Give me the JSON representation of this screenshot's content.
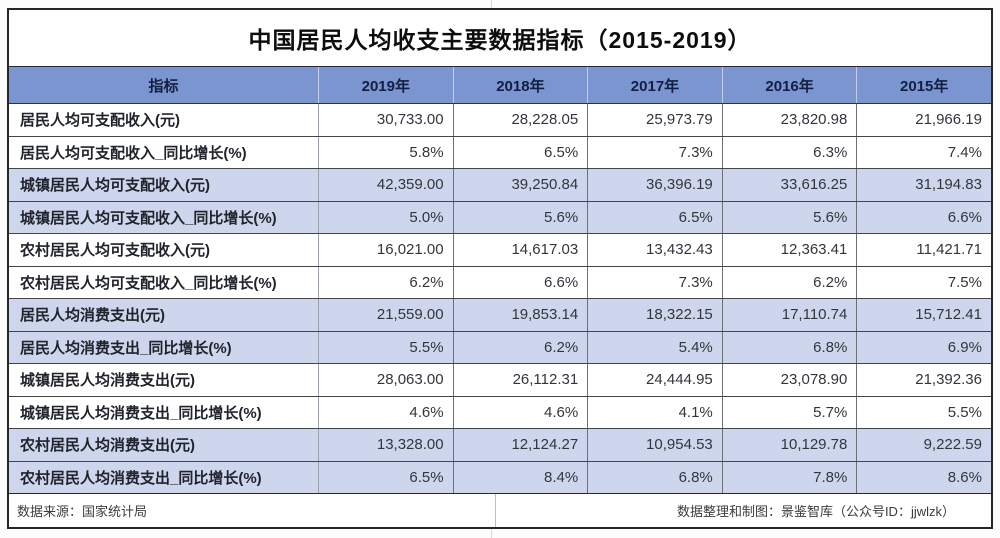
{
  "title": "中国居民人均收支主要数据指标（2015-2019）",
  "table": {
    "columns": [
      "指标",
      "2019年",
      "2018年",
      "2017年",
      "2016年",
      "2015年"
    ],
    "rows": [
      {
        "label": "居民人均可支配收入(元)",
        "shaded": false,
        "values": [
          "30,733.00",
          "28,228.05",
          "25,973.79",
          "23,820.98",
          "21,966.19"
        ]
      },
      {
        "label": "居民人均可支配收入_同比增长(%)",
        "shaded": false,
        "values": [
          "5.8%",
          "6.5%",
          "7.3%",
          "6.3%",
          "7.4%"
        ]
      },
      {
        "label": "城镇居民人均可支配收入(元)",
        "shaded": true,
        "values": [
          "42,359.00",
          "39,250.84",
          "36,396.19",
          "33,616.25",
          "31,194.83"
        ]
      },
      {
        "label": "城镇居民人均可支配收入_同比增长(%)",
        "shaded": true,
        "values": [
          "5.0%",
          "5.6%",
          "6.5%",
          "5.6%",
          "6.6%"
        ]
      },
      {
        "label": "农村居民人均可支配收入(元)",
        "shaded": false,
        "values": [
          "16,021.00",
          "14,617.03",
          "13,432.43",
          "12,363.41",
          "11,421.71"
        ]
      },
      {
        "label": "农村居民人均可支配收入_同比增长(%)",
        "shaded": false,
        "values": [
          "6.2%",
          "6.6%",
          "7.3%",
          "6.2%",
          "7.5%"
        ]
      },
      {
        "label": "居民人均消费支出(元)",
        "shaded": true,
        "values": [
          "21,559.00",
          "19,853.14",
          "18,322.15",
          "17,110.74",
          "15,712.41"
        ]
      },
      {
        "label": "居民人均消费支出_同比增长(%)",
        "shaded": true,
        "values": [
          "5.5%",
          "6.2%",
          "5.4%",
          "6.8%",
          "6.9%"
        ]
      },
      {
        "label": "城镇居民人均消费支出(元)",
        "shaded": false,
        "values": [
          "28,063.00",
          "26,112.31",
          "24,444.95",
          "23,078.90",
          "21,392.36"
        ]
      },
      {
        "label": "城镇居民人均消费支出_同比增长(%)",
        "shaded": false,
        "values": [
          "4.6%",
          "4.6%",
          "4.1%",
          "5.7%",
          "5.5%"
        ]
      },
      {
        "label": "农村居民人均消费支出(元)",
        "shaded": true,
        "values": [
          "13,328.00",
          "12,124.27",
          "10,954.53",
          "10,129.78",
          "9,222.59"
        ]
      },
      {
        "label": "农村居民人均消费支出_同比增长(%)",
        "shaded": true,
        "values": [
          "6.5%",
          "8.4%",
          "6.8%",
          "7.8%",
          "8.6%"
        ]
      }
    ]
  },
  "footer": {
    "source": "数据来源：国家统计局",
    "credit": "数据整理和制图：景鉴智库（公众号ID：jjwlzk）"
  },
  "colors": {
    "header_bg": "#7b95d0",
    "shaded_row_bg": "#cdd6ec",
    "outer_border": "#262626",
    "header_text": "#131f40"
  },
  "chart_data": {
    "type": "table",
    "title": "中国居民人均收支主要数据指标（2015-2019）",
    "columns": [
      "指标",
      "2019年",
      "2018年",
      "2017年",
      "2016年",
      "2015年"
    ],
    "rows": [
      {
        "indicator": "居民人均可支配收入(元)",
        "values": [
          30733.0,
          28228.05,
          25973.79,
          23820.98,
          21966.19
        ]
      },
      {
        "indicator": "居民人均可支配收入_同比增长(%)",
        "values": [
          5.8,
          6.5,
          7.3,
          6.3,
          7.4
        ]
      },
      {
        "indicator": "城镇居民人均可支配收入(元)",
        "values": [
          42359.0,
          39250.84,
          36396.19,
          33616.25,
          31194.83
        ]
      },
      {
        "indicator": "城镇居民人均可支配收入_同比增长(%)",
        "values": [
          5.0,
          5.6,
          6.5,
          5.6,
          6.6
        ]
      },
      {
        "indicator": "农村居民人均可支配收入(元)",
        "values": [
          16021.0,
          14617.03,
          13432.43,
          12363.41,
          11421.71
        ]
      },
      {
        "indicator": "农村居民人均可支配收入_同比增长(%)",
        "values": [
          6.2,
          6.6,
          7.3,
          6.2,
          7.5
        ]
      },
      {
        "indicator": "居民人均消费支出(元)",
        "values": [
          21559.0,
          19853.14,
          18322.15,
          17110.74,
          15712.41
        ]
      },
      {
        "indicator": "居民人均消费支出_同比增长(%)",
        "values": [
          5.5,
          6.2,
          5.4,
          6.8,
          6.9
        ]
      },
      {
        "indicator": "城镇居民人均消费支出(元)",
        "values": [
          28063.0,
          26112.31,
          24444.95,
          23078.9,
          21392.36
        ]
      },
      {
        "indicator": "城镇居民人均消费支出_同比增长(%)",
        "values": [
          4.6,
          4.6,
          4.1,
          5.7,
          5.5
        ]
      },
      {
        "indicator": "农村居民人均消费支出(元)",
        "values": [
          13328.0,
          12124.27,
          10954.53,
          10129.78,
          9222.59
        ]
      },
      {
        "indicator": "农村居民人均消费支出_同比增长(%)",
        "values": [
          6.5,
          8.4,
          6.8,
          7.8,
          8.6
        ]
      }
    ]
  }
}
